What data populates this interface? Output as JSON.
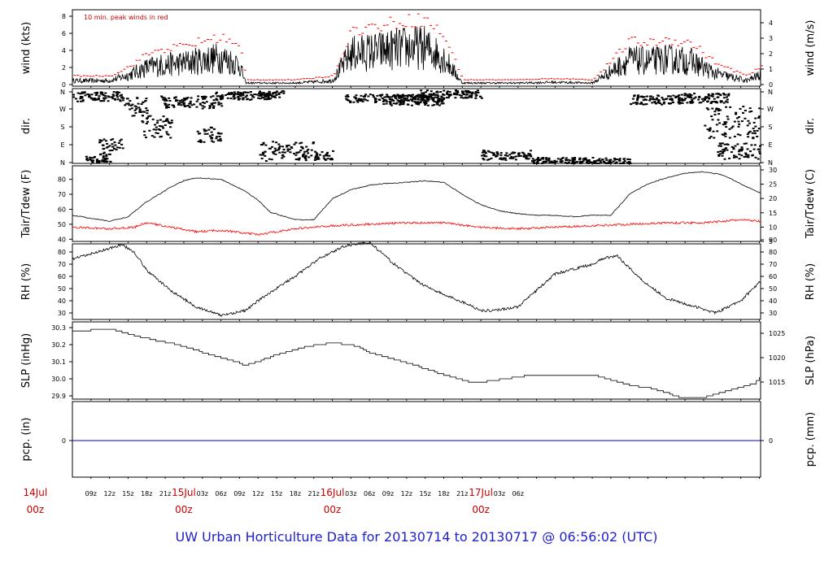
{
  "title": "UW Urban Horticulture Data for 20130714  to  20130717 @ 06:56:02  (UTC)",
  "annotation": "10 min. peak winds in red",
  "colors": {
    "line": "#000000",
    "dewpoint": "#ff0000",
    "peak": "#ff0000",
    "precip": "#0000cc",
    "accent": "#cc0000",
    "title": "#2020cc"
  },
  "x_axis": {
    "hour_ticks": [
      "09z",
      "12z",
      "15z",
      "18z",
      "21z",
      "03z",
      "06z",
      "09z",
      "12z",
      "15z",
      "18z",
      "21z",
      "03z",
      "06z",
      "09z",
      "12z",
      "15z",
      "18z",
      "21z",
      "03z",
      "06z"
    ],
    "day_labels": [
      {
        "top": "14Jul",
        "bottom": "00z"
      },
      {
        "top": "15Jul",
        "bottom": "00z"
      },
      {
        "top": "16Jul",
        "bottom": "00z"
      },
      {
        "top": "17Jul",
        "bottom": "00z"
      }
    ]
  },
  "chart_data": [
    {
      "type": "line",
      "name": "wind",
      "ylabel_left": "wind (kts)",
      "ylabel_right": "wind (m/s)",
      "left_ticks": [
        "0",
        "2",
        "4",
        "6",
        "8"
      ],
      "right_ticks": [
        "0",
        "1",
        "2",
        "3",
        "4"
      ],
      "ylim": [
        0,
        9.5
      ],
      "series": [
        {
          "name": "wind",
          "x_hours": [
            6,
            12,
            15,
            18,
            20,
            24,
            27,
            30,
            33,
            34,
            36,
            42,
            48,
            51,
            55,
            60,
            63,
            66,
            69,
            72,
            78,
            84,
            90,
            96,
            99,
            102,
            106,
            108,
            110,
            115,
            117
          ],
          "values": [
            0.5,
            0.5,
            1.2,
            2.2,
            2.5,
            2.8,
            3.2,
            3.5,
            2.6,
            0.2,
            0.2,
            0.2,
            0.5,
            4.0,
            4.3,
            4.8,
            4.8,
            3.5,
            0.2,
            0.2,
            0.2,
            0.3,
            0.2,
            3.2,
            3.0,
            3.3,
            3.0,
            2.2,
            1.4,
            0.5,
            1.2
          ]
        }
      ]
    },
    {
      "type": "scatter",
      "name": "dir.",
      "ylabel_left": "dir.",
      "ylabel_right": "dir.",
      "left_ticks": [
        "N",
        "E",
        "S",
        "W",
        "N"
      ],
      "right_ticks": [
        "N",
        "E",
        "S",
        "W",
        "N"
      ]
    },
    {
      "type": "line",
      "name": "Tair/Tdew",
      "ylabel_left": "Tair/Tdew (F)",
      "ylabel_right": "Tair/Tdew (C)",
      "left_ticks": [
        "40",
        "50",
        "60",
        "70",
        "80"
      ],
      "right_ticks": [
        "5",
        "10",
        "15",
        "20",
        "25",
        "30"
      ],
      "ylim": [
        38,
        89
      ],
      "series": [
        {
          "name": "Tair",
          "x_hours": [
            6,
            9,
            12,
            15,
            18,
            22,
            24,
            26,
            30,
            34,
            36,
            38,
            42,
            45,
            48,
            51,
            54,
            56,
            60,
            63,
            66,
            69,
            72,
            75,
            78,
            81,
            84,
            87,
            90,
            93,
            96,
            99,
            102,
            105,
            108,
            111,
            114,
            117
          ],
          "values": [
            56,
            54,
            52,
            55,
            65,
            75,
            79,
            81,
            80,
            72,
            66,
            58,
            53,
            53,
            67,
            73,
            76,
            77,
            78,
            79,
            78,
            70,
            63,
            59,
            57,
            56,
            56,
            55,
            56,
            56,
            70,
            77,
            81,
            84,
            85,
            83,
            77,
            71
          ]
        },
        {
          "name": "Tdew",
          "x_hours": [
            6,
            12,
            16,
            18,
            22,
            26,
            30,
            36,
            42,
            48,
            54,
            60,
            66,
            72,
            78,
            84,
            90,
            96,
            102,
            108,
            114,
            117
          ],
          "values": [
            48,
            47,
            48,
            51,
            48,
            45,
            46,
            43,
            47,
            49,
            50,
            51,
            51,
            48,
            47,
            48,
            49,
            50,
            51,
            51,
            53,
            52
          ]
        }
      ]
    },
    {
      "type": "line",
      "name": "RH",
      "ylabel_left": "RH (%)",
      "ylabel_right": "RH (%)",
      "left_ticks": [
        "30",
        "40",
        "50",
        "60",
        "70",
        "80"
      ],
      "right_ticks": [
        "30",
        "40",
        "50",
        "60",
        "70",
        "80",
        "90"
      ],
      "ylim": [
        22,
        92
      ],
      "series": [
        {
          "name": "RH",
          "x_hours": [
            6,
            10,
            14,
            16,
            18,
            22,
            26,
            30,
            34,
            36,
            38,
            42,
            46,
            50,
            54,
            58,
            62,
            66,
            70,
            72,
            74,
            78,
            84,
            90,
            92,
            94,
            98,
            102,
            106,
            110,
            114,
            117
          ],
          "values": [
            74,
            80,
            86,
            80,
            65,
            48,
            35,
            28,
            32,
            40,
            47,
            60,
            75,
            85,
            88,
            70,
            55,
            45,
            37,
            32,
            32,
            35,
            62,
            70,
            75,
            77,
            57,
            42,
            36,
            30,
            40,
            55
          ]
        }
      ]
    },
    {
      "type": "line",
      "name": "SLP",
      "ylabel_left": "SLP (inHg)",
      "ylabel_right": "SLP (hPa)",
      "left_ticks": [
        "29.9",
        "30.0",
        "30.1",
        "30.2",
        "30.3"
      ],
      "right_ticks": [
        "1015",
        "1020",
        "1025"
      ],
      "ylim": [
        29.885,
        30.305
      ],
      "series": [
        {
          "name": "SLP",
          "x_hours": [
            6,
            12,
            16,
            20,
            24,
            28,
            30,
            34,
            38,
            42,
            44,
            48,
            52,
            54,
            58,
            62,
            66,
            70,
            72,
            80,
            90,
            96,
            100,
            104,
            108,
            112,
            116,
            117
          ],
          "values": [
            30.28,
            30.29,
            30.25,
            30.22,
            30.19,
            30.14,
            30.12,
            30.08,
            30.13,
            30.17,
            30.19,
            30.21,
            30.19,
            30.15,
            30.11,
            30.07,
            30.02,
            29.98,
            29.98,
            30.02,
            30.02,
            29.96,
            29.94,
            29.89,
            29.89,
            29.93,
            29.97,
            30.01
          ]
        }
      ]
    },
    {
      "type": "line",
      "name": "pcp.",
      "ylabel_left": "pcp. (in)",
      "ylabel_right": "pcp. (mm)",
      "left_ticks": [
        "0"
      ],
      "right_ticks": [
        "0"
      ],
      "series": [
        {
          "name": "pcp",
          "x_hours": [
            6,
            117
          ],
          "values": [
            0,
            0
          ]
        }
      ]
    }
  ]
}
